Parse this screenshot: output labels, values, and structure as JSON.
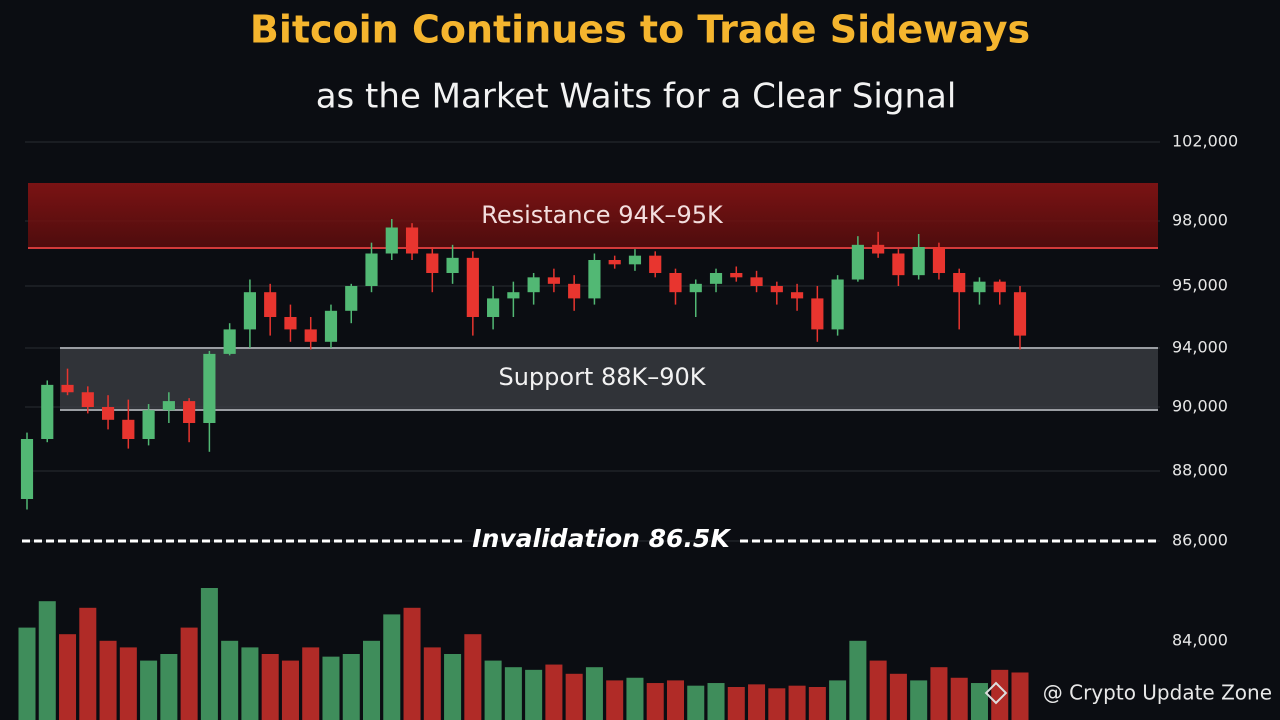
{
  "chart_data": {
    "type": "candlestick",
    "title": "Bitcoin Continues to Trade Sideways",
    "subtitle": "as the Market Waits for a Clear Signal",
    "annotations": {
      "resistance": "Resistance 94K–95K",
      "support": "Support 88K–90K",
      "invalidation": "Invalidation 86.5K"
    },
    "watermark": "@ Crypto Update Zone",
    "yticks": [
      {
        "value": 102000,
        "label": "102,000"
      },
      {
        "value": 98000,
        "label": "98,000"
      },
      {
        "value": 95000,
        "label": "95,000"
      },
      {
        "value": 94000,
        "label": "94,000"
      },
      {
        "value": 90000,
        "label": "90,000"
      },
      {
        "value": 88000,
        "label": "88,000"
      },
      {
        "value": 86000,
        "label": "86,000"
      },
      {
        "value": 84000,
        "label": "84,000"
      }
    ],
    "grid": true,
    "up_color": "#52b874",
    "down_color": "#e8352f",
    "open": [
      87200,
      89000,
      91500,
      91000,
      90000,
      89600,
      89000,
      89900,
      90400,
      89500,
      93600,
      94300,
      94900,
      94500,
      94300,
      94100,
      94600,
      95000,
      96500,
      97700,
      96500,
      95600,
      96300,
      94500,
      94800,
      94900,
      95400,
      95100,
      94800,
      96200,
      96000,
      96400,
      95600,
      94900,
      95100,
      95600,
      95400,
      95000,
      94900,
      94800,
      94300,
      95300,
      96900,
      96500,
      95500,
      96800,
      95600,
      94900,
      95200,
      94900
    ],
    "high": [
      89200,
      91800,
      92600,
      91400,
      90800,
      90500,
      90200,
      91000,
      90600,
      93800,
      94400,
      95300,
      95100,
      94700,
      94500,
      94700,
      95100,
      97000,
      98100,
      97900,
      96800,
      96900,
      96600,
      95000,
      95200,
      95600,
      95800,
      95500,
      96500,
      96400,
      96700,
      96600,
      95800,
      95300,
      95800,
      95900,
      95700,
      95200,
      95100,
      95000,
      95500,
      97300,
      97500,
      96700,
      97400,
      97000,
      95800,
      95400,
      95300,
      95000
    ],
    "low": [
      86900,
      88900,
      90800,
      89800,
      89300,
      88700,
      88800,
      89500,
      88900,
      88600,
      93500,
      94000,
      94200,
      94100,
      93900,
      94000,
      94400,
      94900,
      96200,
      96200,
      94900,
      95100,
      94200,
      94300,
      94500,
      94700,
      94900,
      94600,
      94700,
      95800,
      95700,
      95400,
      94700,
      94500,
      94900,
      95200,
      94900,
      94700,
      94600,
      94100,
      94200,
      95200,
      96300,
      95000,
      95300,
      95300,
      94300,
      94700,
      94700,
      93900
    ],
    "close": [
      89000,
      91500,
      91000,
      90000,
      89600,
      89000,
      89900,
      90400,
      89500,
      93600,
      94300,
      94900,
      94500,
      94300,
      94100,
      94600,
      95000,
      96500,
      97700,
      96500,
      95600,
      96300,
      94500,
      94800,
      94900,
      95400,
      95100,
      94800,
      96200,
      96000,
      96400,
      95600,
      94900,
      95100,
      95600,
      95400,
      95000,
      94900,
      94800,
      94300,
      95300,
      96900,
      96500,
      95500,
      96800,
      95600,
      94900,
      95200,
      94900,
      94200
    ],
    "volume": [
      70,
      90,
      65,
      85,
      60,
      55,
      45,
      50,
      70,
      100,
      60,
      55,
      50,
      45,
      55,
      48,
      50,
      60,
      80,
      85,
      55,
      50,
      65,
      45,
      40,
      38,
      42,
      35,
      40,
      30,
      32,
      28,
      30,
      26,
      28,
      25,
      27,
      24,
      26,
      25,
      30,
      60,
      45,
      35,
      30,
      40,
      32,
      28,
      38,
      36
    ]
  }
}
